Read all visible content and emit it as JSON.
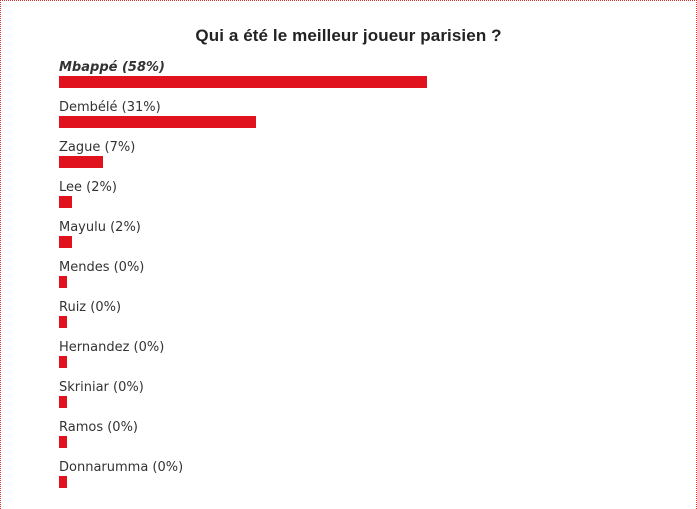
{
  "poll": {
    "title": "Qui a été le meilleur joueur parisien ?",
    "accent_color": "#e0121e",
    "options": [
      {
        "label": "Mbappé (58%)",
        "percent": 58,
        "winner": true
      },
      {
        "label": "Dembélé (31%)",
        "percent": 31,
        "winner": false
      },
      {
        "label": "Zague (7%)",
        "percent": 7,
        "winner": false
      },
      {
        "label": "Lee (2%)",
        "percent": 2,
        "winner": false
      },
      {
        "label": "Mayulu (2%)",
        "percent": 2,
        "winner": false
      },
      {
        "label": "Mendes (0%)",
        "percent": 0,
        "winner": false
      },
      {
        "label": "Ruiz (0%)",
        "percent": 0,
        "winner": false
      },
      {
        "label": "Hernandez (0%)",
        "percent": 0,
        "winner": false
      },
      {
        "label": "Skriniar (0%)",
        "percent": 0,
        "winner": false
      },
      {
        "label": "Ramos (0%)",
        "percent": 0,
        "winner": false
      },
      {
        "label": "Donnarumma (0%)",
        "percent": 0,
        "winner": false
      }
    ]
  }
}
